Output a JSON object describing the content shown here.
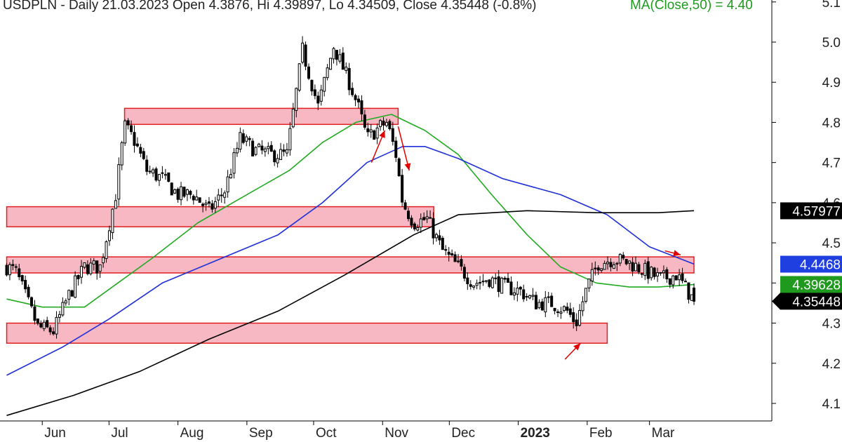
{
  "title": {
    "main": "USDPLN - Daily 21.03.2023 Open 4.3876, Hi 4.39897, Lo 4.34509, Close 4.35448 (-0.8%)",
    "ma": "MA(Close,50) = 4.40"
  },
  "colors": {
    "candle": "#000000",
    "ma50": "#22aa22",
    "ma100": "#1f2fd6",
    "ma200": "#000000",
    "zone_fill": "#f7b8c4",
    "zone_stroke": "#e02020",
    "arrow": "#e00000",
    "tag_black": "#000000",
    "tag_blue": "#1f3fe0",
    "tag_green": "#1f9a1f"
  },
  "chart_data": {
    "type": "candlestick",
    "symbol": "USDPLN",
    "ylim": [
      4.07,
      5.11
    ],
    "y_ticks": [
      "4.1",
      "4.2",
      "4.3",
      "4.4",
      "4.5",
      "4.6",
      "4.7",
      "4.8",
      "4.9",
      "5.0",
      "5.1"
    ],
    "x_ticks": [
      {
        "label": "Jun",
        "bold": false
      },
      {
        "label": "Jul",
        "bold": false
      },
      {
        "label": "Aug",
        "bold": false
      },
      {
        "label": "Sep",
        "bold": false
      },
      {
        "label": "Oct",
        "bold": false
      },
      {
        "label": "Nov",
        "bold": false
      },
      {
        "label": "Dec",
        "bold": false
      },
      {
        "label": "2023",
        "bold": true
      },
      {
        "label": "Feb",
        "bold": false
      },
      {
        "label": "Mar",
        "bold": false
      }
    ],
    "price_path": [
      [
        "2022-05-16",
        4.44
      ],
      [
        "2022-05-20",
        4.43
      ],
      [
        "2022-05-25",
        4.36
      ],
      [
        "2022-05-30",
        4.29
      ],
      [
        "2022-06-06",
        4.28
      ],
      [
        "2022-06-13",
        4.37
      ],
      [
        "2022-06-20",
        4.44
      ],
      [
        "2022-06-27",
        4.44
      ],
      [
        "2022-07-04",
        4.62
      ],
      [
        "2022-07-08",
        4.79
      ],
      [
        "2022-07-12",
        4.76
      ],
      [
        "2022-07-18",
        4.68
      ],
      [
        "2022-07-25",
        4.66
      ],
      [
        "2022-08-01",
        4.62
      ],
      [
        "2022-08-08",
        4.62
      ],
      [
        "2022-08-15",
        4.58
      ],
      [
        "2022-08-22",
        4.63
      ],
      [
        "2022-08-29",
        4.76
      ],
      [
        "2022-09-05",
        4.73
      ],
      [
        "2022-09-12",
        4.72
      ],
      [
        "2022-09-19",
        4.72
      ],
      [
        "2022-09-26",
        4.98
      ],
      [
        "2022-10-03",
        4.84
      ],
      [
        "2022-10-10",
        4.99
      ],
      [
        "2022-10-17",
        4.9
      ],
      [
        "2022-10-21",
        4.84
      ],
      [
        "2022-10-25",
        4.76
      ],
      [
        "2022-10-31",
        4.79
      ],
      [
        "2022-11-03",
        4.8
      ],
      [
        "2022-11-07",
        4.72
      ],
      [
        "2022-11-10",
        4.6
      ],
      [
        "2022-11-15",
        4.55
      ],
      [
        "2022-11-21",
        4.56
      ],
      [
        "2022-11-28",
        4.48
      ],
      [
        "2022-12-05",
        4.44
      ],
      [
        "2022-12-12",
        4.4
      ],
      [
        "2022-12-19",
        4.41
      ],
      [
        "2022-12-26",
        4.39
      ],
      [
        "2023-01-02",
        4.38
      ],
      [
        "2023-01-09",
        4.35
      ],
      [
        "2023-01-16",
        4.35
      ],
      [
        "2023-01-23",
        4.33
      ],
      [
        "2023-01-27",
        4.3
      ],
      [
        "2023-02-01",
        4.39
      ],
      [
        "2023-02-06",
        4.45
      ],
      [
        "2023-02-13",
        4.46
      ],
      [
        "2023-02-20",
        4.45
      ],
      [
        "2023-02-27",
        4.43
      ],
      [
        "2023-03-06",
        4.41
      ],
      [
        "2023-03-13",
        4.42
      ],
      [
        "2023-03-17",
        4.39
      ],
      [
        "2023-03-21",
        4.355
      ]
    ],
    "last_candle": {
      "date": "2023-03-21",
      "open": 4.3876,
      "high": 4.39897,
      "low": 4.34509,
      "close": 4.35448
    },
    "moving_averages": [
      {
        "name": "MA(Close,50)",
        "color": "ma50",
        "points": [
          [
            "2022-05-16",
            4.36
          ],
          [
            "2022-06-01",
            4.34
          ],
          [
            "2022-06-20",
            4.34
          ],
          [
            "2022-07-05",
            4.4
          ],
          [
            "2022-07-20",
            4.46
          ],
          [
            "2022-08-10",
            4.55
          ],
          [
            "2022-09-01",
            4.62
          ],
          [
            "2022-09-20",
            4.68
          ],
          [
            "2022-10-05",
            4.75
          ],
          [
            "2022-10-20",
            4.8
          ],
          [
            "2022-11-05",
            4.82
          ],
          [
            "2022-11-20",
            4.78
          ],
          [
            "2022-12-05",
            4.72
          ],
          [
            "2022-12-20",
            4.62
          ],
          [
            "2023-01-05",
            4.52
          ],
          [
            "2023-01-20",
            4.44
          ],
          [
            "2023-02-05",
            4.4
          ],
          [
            "2023-02-20",
            4.39
          ],
          [
            "2023-03-05",
            4.39
          ],
          [
            "2023-03-21",
            4.396
          ]
        ]
      },
      {
        "name": "MA(Close,100)",
        "color": "ma100",
        "points": [
          [
            "2022-05-16",
            4.17
          ],
          [
            "2022-06-10",
            4.24
          ],
          [
            "2022-07-01",
            4.31
          ],
          [
            "2022-07-25",
            4.4
          ],
          [
            "2022-08-20",
            4.46
          ],
          [
            "2022-09-15",
            4.52
          ],
          [
            "2022-10-05",
            4.6
          ],
          [
            "2022-10-25",
            4.7
          ],
          [
            "2022-11-10",
            4.74
          ],
          [
            "2022-11-20",
            4.74
          ],
          [
            "2022-12-05",
            4.71
          ],
          [
            "2022-12-25",
            4.66
          ],
          [
            "2023-01-20",
            4.62
          ],
          [
            "2023-02-10",
            4.57
          ],
          [
            "2023-03-01",
            4.49
          ],
          [
            "2023-03-21",
            4.447
          ]
        ]
      },
      {
        "name": "MA(Close,200)",
        "color": "ma200",
        "points": [
          [
            "2022-05-16",
            4.07
          ],
          [
            "2022-06-15",
            4.12
          ],
          [
            "2022-07-15",
            4.18
          ],
          [
            "2022-08-15",
            4.26
          ],
          [
            "2022-09-15",
            4.33
          ],
          [
            "2022-10-15",
            4.42
          ],
          [
            "2022-11-15",
            4.52
          ],
          [
            "2022-12-05",
            4.57
          ],
          [
            "2023-01-05",
            4.58
          ],
          [
            "2023-02-05",
            4.575
          ],
          [
            "2023-03-05",
            4.575
          ],
          [
            "2023-03-21",
            4.58
          ]
        ]
      }
    ],
    "zones": [
      {
        "from": "2022-07-08",
        "to": "2022-11-08",
        "low": 4.795,
        "high": 4.835
      },
      {
        "from": "2022-05-16",
        "to": "2022-11-24",
        "low": 4.54,
        "high": 4.59
      },
      {
        "from": "2022-05-16",
        "to": "2023-03-21",
        "low": 4.425,
        "high": 4.465
      },
      {
        "from": "2022-05-16",
        "to": "2023-02-10",
        "low": 4.25,
        "high": 4.3
      }
    ],
    "arrows": [
      {
        "from": [
          "2022-10-27",
          4.7
        ],
        "to": [
          "2022-11-02",
          4.78
        ]
      },
      {
        "from": [
          "2022-11-08",
          4.79
        ],
        "to": [
          "2022-11-13",
          4.68
        ]
      },
      {
        "from": [
          "2023-01-22",
          4.21
        ],
        "to": [
          "2023-01-29",
          4.25
        ]
      },
      {
        "from": [
          "2023-03-08",
          4.48
        ],
        "to": [
          "2023-03-15",
          4.47
        ]
      }
    ],
    "price_tags": [
      {
        "value": 4.57977,
        "label": "4.57977",
        "color": "tag_black",
        "text": "#ffffff",
        "pointer": false
      },
      {
        "value": 4.4468,
        "label": "4.4468",
        "color": "tag_blue",
        "text": "#ffffff",
        "pointer": false
      },
      {
        "value": 4.39628,
        "label": "4.39628",
        "color": "tag_green",
        "text": "#ffffff",
        "pointer": false
      },
      {
        "value": 4.35448,
        "label": "4.35448",
        "color": "tag_black",
        "text": "#ffffff",
        "pointer": true
      }
    ]
  }
}
